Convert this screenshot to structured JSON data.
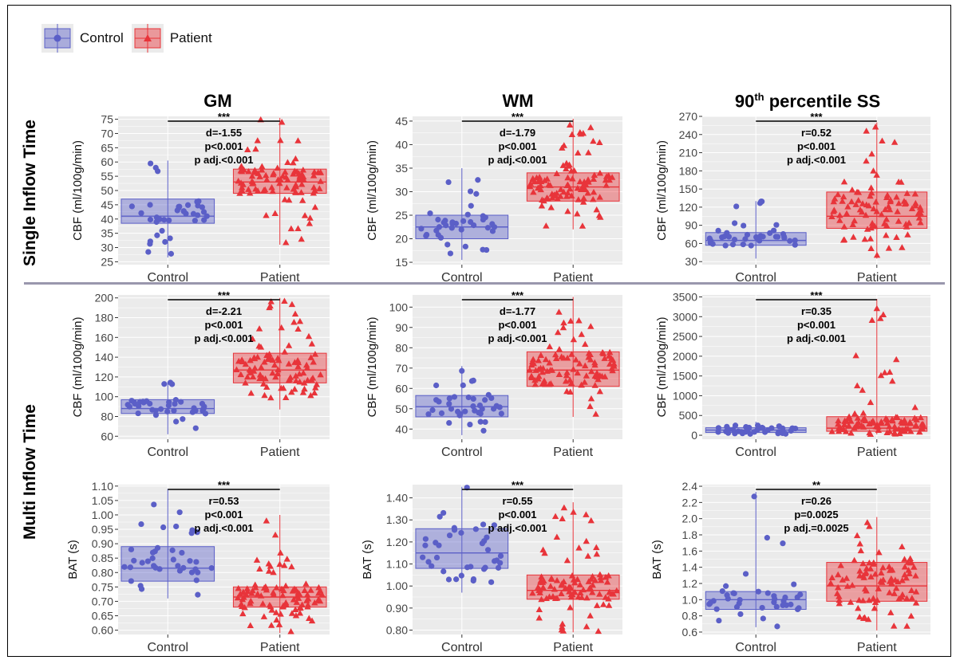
{
  "legend": {
    "items": [
      {
        "label": "Control",
        "color": "#5b5fc7",
        "marker": "circle"
      },
      {
        "label": "Patient",
        "color": "#e8343a",
        "marker": "triangle"
      }
    ]
  },
  "column_titles": [
    "GM",
    "WM",
    "90",
    "th",
    " percentile SS"
  ],
  "row_labels": [
    "Single Inflow Time",
    "Multi Inflow Time"
  ],
  "colors": {
    "control": "#5b5fc7",
    "patient": "#e8343a",
    "panel_bg": "#ebebeb",
    "grid": "#ffffff"
  },
  "chart_data": [
    {
      "type": "box",
      "panel": "single-gm",
      "ylabel": "CBF (ml/100g/min)",
      "categories": [
        "Control",
        "Patient"
      ],
      "ylim": [
        24,
        76
      ],
      "yticks": [
        25,
        30,
        35,
        40,
        45,
        50,
        55,
        60,
        65,
        70,
        75
      ],
      "control": {
        "q1": 38.5,
        "median": 41,
        "q3": 47,
        "wlo": 26.5,
        "whi": 60.5
      },
      "patient": {
        "q1": 49,
        "median": 53,
        "q3": 57.5,
        "wlo": 31,
        "whi": 75.5
      },
      "significance": "***",
      "annotation": [
        "d=-1.55",
        "p<0.001",
        "p adj.<0.001"
      ]
    },
    {
      "type": "box",
      "panel": "single-wm",
      "ylabel": "CBF (ml/100g/min)",
      "categories": [
        "Control",
        "Patient"
      ],
      "ylim": [
        14.5,
        46
      ],
      "yticks": [
        15,
        20,
        25,
        30,
        35,
        40,
        45
      ],
      "control": {
        "q1": 20,
        "median": 22.5,
        "q3": 25,
        "wlo": 15.5,
        "whi": 35
      },
      "patient": {
        "q1": 28,
        "median": 31,
        "q3": 34,
        "wlo": 22,
        "whi": 45.5
      },
      "significance": "***",
      "annotation": [
        "d=-1.79",
        "p<0.001",
        "p adj.<0.001"
      ]
    },
    {
      "type": "box",
      "panel": "single-ss",
      "ylabel": "CBF (ml/100g/min)",
      "categories": [
        "Control",
        "Patient"
      ],
      "ylim": [
        25,
        270
      ],
      "yticks": [
        30,
        60,
        90,
        120,
        150,
        180,
        210,
        240,
        270
      ],
      "control": {
        "q1": 57,
        "median": 65,
        "q3": 78,
        "wlo": 35,
        "whi": 130
      },
      "patient": {
        "q1": 85,
        "median": 105,
        "q3": 145,
        "wlo": 35,
        "whi": 260
      },
      "significance": "***",
      "annotation": [
        "r=0.52",
        "p<0.001",
        "p adj.<0.001"
      ]
    },
    {
      "type": "box",
      "panel": "multi-gm",
      "ylabel": "CBF (ml/100g/min)",
      "categories": [
        "Control",
        "Patient"
      ],
      "ylim": [
        57,
        203
      ],
      "yticks": [
        60,
        80,
        100,
        120,
        140,
        160,
        180,
        200
      ],
      "control": {
        "q1": 83,
        "median": 88,
        "q3": 97,
        "wlo": 62,
        "whi": 115
      },
      "patient": {
        "q1": 114,
        "median": 127,
        "q3": 144,
        "wlo": 87,
        "whi": 200
      },
      "significance": "***",
      "annotation": [
        "d=-2.21",
        "p<0.001",
        "p adj.<0.001"
      ]
    },
    {
      "type": "box",
      "panel": "multi-wm",
      "ylabel": "CBF (ml/100g/min)",
      "categories": [
        "Control",
        "Patient"
      ],
      "ylim": [
        35,
        106
      ],
      "yticks": [
        40,
        50,
        60,
        70,
        80,
        90,
        100
      ],
      "control": {
        "q1": 46,
        "median": 51,
        "q3": 56.5,
        "wlo": 37,
        "whi": 71
      },
      "patient": {
        "q1": 61,
        "median": 69,
        "q3": 78,
        "wlo": 46,
        "whi": 105
      },
      "significance": "***",
      "annotation": [
        "d=-1.77",
        "p<0.001",
        "p adj.<0.001"
      ]
    },
    {
      "type": "box",
      "panel": "multi-ss",
      "ylabel": "CBF (ml/100g/min)",
      "categories": [
        "Control",
        "Patient"
      ],
      "ylim": [
        -100,
        3550
      ],
      "yticks": [
        0,
        500,
        1000,
        1500,
        2000,
        2500,
        3000,
        3500
      ],
      "control": {
        "q1": 70,
        "median": 130,
        "q3": 190,
        "wlo": 20,
        "whi": 340
      },
      "patient": {
        "q1": 100,
        "median": 180,
        "q3": 470,
        "wlo": 20,
        "whi": 3450
      },
      "significance": "***",
      "annotation": [
        "r=0.35",
        "p<0.001",
        "p adj.<0.001"
      ]
    },
    {
      "type": "box",
      "panel": "bat-gm",
      "ylabel": "BAT (s)",
      "categories": [
        "Control",
        "Patient"
      ],
      "ylim": [
        0.585,
        1.105
      ],
      "yticks": [
        0.6,
        0.65,
        0.7,
        0.75,
        0.8,
        0.85,
        0.9,
        0.95,
        1.0,
        1.05,
        1.1
      ],
      "control": {
        "q1": 0.77,
        "median": 0.815,
        "q3": 0.89,
        "wlo": 0.71,
        "whi": 1.09
      },
      "patient": {
        "q1": 0.68,
        "median": 0.715,
        "q3": 0.75,
        "wlo": 0.59,
        "whi": 1.0
      },
      "significance": "***",
      "annotation": [
        "r=0.53",
        "p<0.001",
        "p adj.<0.001"
      ]
    },
    {
      "type": "box",
      "panel": "bat-wm",
      "ylabel": "BAT (s)",
      "categories": [
        "Control",
        "Patient"
      ],
      "ylim": [
        0.78,
        1.46
      ],
      "yticks": [
        0.8,
        0.9,
        1.0,
        1.1,
        1.2,
        1.3,
        1.4
      ],
      "control": {
        "q1": 1.08,
        "median": 1.15,
        "q3": 1.26,
        "wlo": 0.97,
        "whi": 1.45
      },
      "patient": {
        "q1": 0.94,
        "median": 0.98,
        "q3": 1.05,
        "wlo": 0.79,
        "whi": 1.38
      },
      "significance": "***",
      "annotation": [
        "r=0.55",
        "p<0.001",
        "p adj.<0.001"
      ]
    },
    {
      "type": "box",
      "panel": "bat-ss",
      "ylabel": "BAT (s)",
      "categories": [
        "Control",
        "Patient"
      ],
      "ylim": [
        0.57,
        2.42
      ],
      "yticks": [
        0.6,
        0.8,
        1.0,
        1.2,
        1.4,
        1.6,
        1.8,
        2.0,
        2.2,
        2.4
      ],
      "control": {
        "q1": 0.88,
        "median": 1.0,
        "q3": 1.1,
        "wlo": 0.66,
        "whi": 2.33
      },
      "patient": {
        "q1": 0.98,
        "median": 1.17,
        "q3": 1.46,
        "wlo": 0.62,
        "whi": 2.02
      },
      "significance": "**",
      "annotation": [
        "r=0.26",
        "p=0.0025",
        "p adj.=0.0025"
      ]
    }
  ]
}
